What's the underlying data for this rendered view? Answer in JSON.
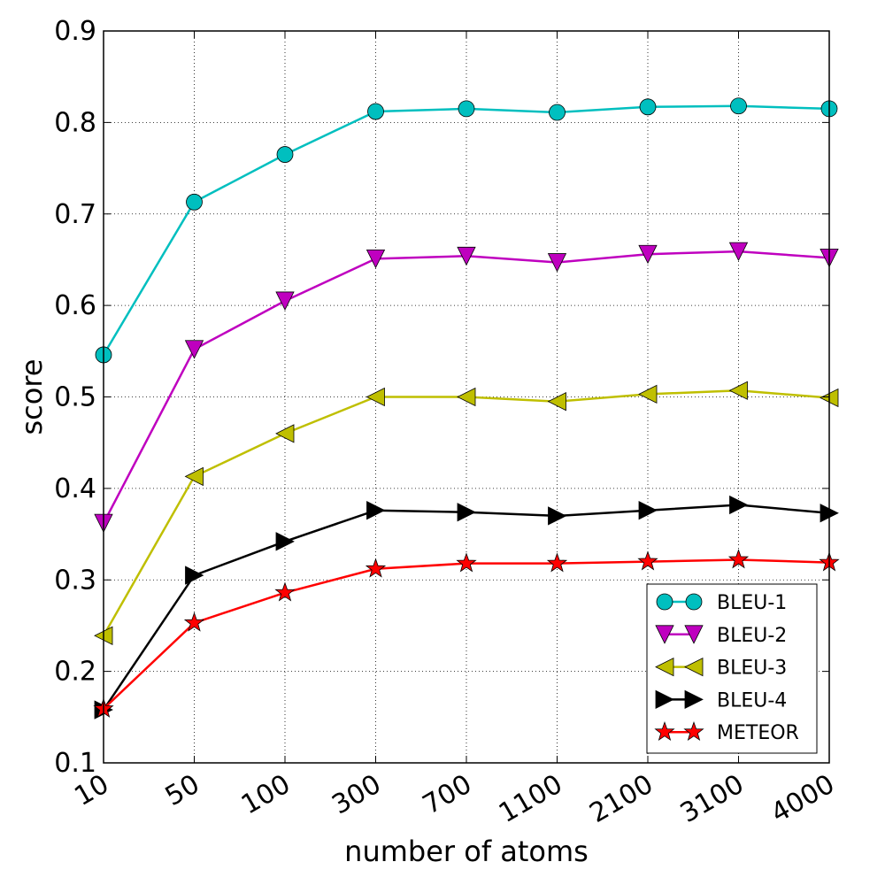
{
  "chart_data": {
    "type": "line",
    "xlabel": "number of atoms",
    "ylabel": "score",
    "categories": [
      "10",
      "50",
      "100",
      "300",
      "700",
      "1100",
      "2100",
      "3100",
      "4000"
    ],
    "ylim": [
      0.1,
      0.9
    ],
    "yticks": [
      "0.1",
      "0.2",
      "0.3",
      "0.4",
      "0.5",
      "0.6",
      "0.7",
      "0.8",
      "0.9"
    ],
    "grid": true,
    "legend_position": "bottom-right",
    "series": [
      {
        "name": "BLEU-1",
        "color": "#00bfbf",
        "marker": "circle",
        "values": [
          0.546,
          0.713,
          0.765,
          0.812,
          0.815,
          0.811,
          0.817,
          0.818,
          0.815
        ]
      },
      {
        "name": "BLEU-2",
        "color": "#bf00bf",
        "marker": "triangle-down",
        "values": [
          0.362,
          0.552,
          0.605,
          0.651,
          0.654,
          0.647,
          0.656,
          0.659,
          0.652
        ]
      },
      {
        "name": "BLEU-3",
        "color": "#bfbf00",
        "marker": "triangle-left",
        "values": [
          0.239,
          0.413,
          0.46,
          0.5,
          0.5,
          0.495,
          0.503,
          0.507,
          0.499
        ]
      },
      {
        "name": "BLEU-4",
        "color": "#000000",
        "marker": "triangle-right",
        "values": [
          0.158,
          0.305,
          0.342,
          0.376,
          0.374,
          0.37,
          0.376,
          0.382,
          0.373
        ]
      },
      {
        "name": "METEOR",
        "color": "#ff0000",
        "marker": "star",
        "values": [
          0.159,
          0.253,
          0.286,
          0.312,
          0.318,
          0.318,
          0.32,
          0.322,
          0.319
        ]
      }
    ]
  }
}
